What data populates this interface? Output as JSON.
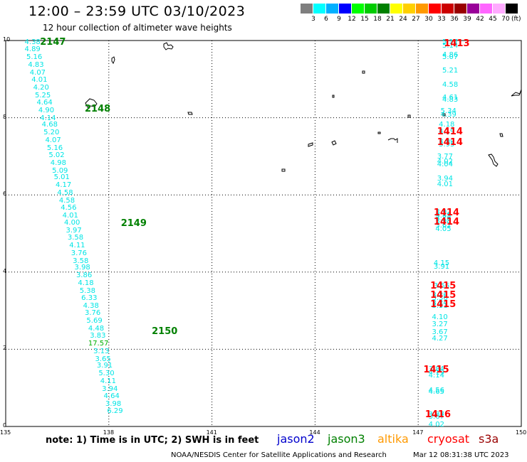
{
  "header": {
    "title": "12:00 – 23:59 UTC 03/10/2023",
    "subtitle": "12 hour collection of altimeter wave heights"
  },
  "color_scale": {
    "colors": [
      "#7f7f7f",
      "#00ffff",
      "#00b0ff",
      "#0000ff",
      "#00ff00",
      "#00cc00",
      "#008000",
      "#ffff00",
      "#ffd000",
      "#ff9900",
      "#ff0000",
      "#cc0000",
      "#990000",
      "#990099",
      "#ff66ff",
      "#ffaaff",
      "#000000"
    ],
    "labels": [
      "3",
      "6",
      "9",
      "12",
      "15",
      "18",
      "21",
      "24",
      "27",
      "30",
      "33",
      "36",
      "39",
      "42",
      "45",
      "70"
    ],
    "unit": "(ft)"
  },
  "axes": {
    "x_ticks": [
      "135",
      "138",
      "141",
      "144",
      "147",
      "150"
    ],
    "y_ticks": [
      "10",
      "8",
      "6",
      "4",
      "2",
      "0"
    ]
  },
  "map": {
    "x_range": [
      135,
      150
    ],
    "y_range": [
      0,
      10
    ],
    "grid": true
  },
  "tracks": [
    {
      "label": "2147",
      "color": "#008000",
      "lon": 136.0,
      "lat": 9.95
    },
    {
      "label": "2148",
      "color": "#008000",
      "lon": 137.3,
      "lat": 8.22
    },
    {
      "label": "2149",
      "color": "#008000",
      "lon": 138.35,
      "lat": 5.25
    },
    {
      "label": "2150",
      "color": "#008000",
      "lon": 139.25,
      "lat": 2.45
    },
    {
      "label": "1413",
      "color": "#ff0000",
      "lon": 147.75,
      "lat": 9.9
    },
    {
      "label": "1414",
      "color": "#ff0000",
      "lon": 147.55,
      "lat": 7.62
    },
    {
      "label": "1414",
      "color": "#ff0000",
      "lon": 147.55,
      "lat": 7.35
    },
    {
      "label": "1414",
      "color": "#ff0000",
      "lon": 147.45,
      "lat": 5.52
    },
    {
      "label": "1414",
      "color": "#ff0000",
      "lon": 147.45,
      "lat": 5.28
    },
    {
      "label": "1415",
      "color": "#ff0000",
      "lon": 147.35,
      "lat": 3.62
    },
    {
      "label": "1415",
      "color": "#ff0000",
      "lon": 147.35,
      "lat": 3.38
    },
    {
      "label": "1415",
      "color": "#ff0000",
      "lon": 147.35,
      "lat": 3.15
    },
    {
      "label": "1415",
      "color": "#ff0000",
      "lon": 147.15,
      "lat": 1.45
    },
    {
      "label": "1416",
      "color": "#ff0000",
      "lon": 147.2,
      "lat": 0.3
    }
  ],
  "observations": [
    {
      "v": "4.38",
      "lon": 135.55,
      "lat": 9.95,
      "c": "#00e5e5"
    },
    {
      "v": "4.89",
      "lon": 135.55,
      "lat": 9.76,
      "c": "#00e5e5"
    },
    {
      "v": "5.16",
      "lon": 135.6,
      "lat": 9.56,
      "c": "#00e5e5"
    },
    {
      "v": "4.83",
      "lon": 135.65,
      "lat": 9.36,
      "c": "#00e5e5"
    },
    {
      "v": "4.07",
      "lon": 135.7,
      "lat": 9.16,
      "c": "#00e5e5"
    },
    {
      "v": "4.01",
      "lon": 135.75,
      "lat": 8.96,
      "c": "#00e5e5"
    },
    {
      "v": "4.20",
      "lon": 135.8,
      "lat": 8.76,
      "c": "#00e5e5"
    },
    {
      "v": "5.25",
      "lon": 135.85,
      "lat": 8.56,
      "c": "#00e5e5"
    },
    {
      "v": "4.64",
      "lon": 135.9,
      "lat": 8.38,
      "c": "#00e5e5"
    },
    {
      "v": "4.90",
      "lon": 135.95,
      "lat": 8.18,
      "c": "#00e5e5"
    },
    {
      "v": "4.14",
      "lon": 136.0,
      "lat": 7.98,
      "c": "#00e5e5"
    },
    {
      "v": "4.68",
      "lon": 136.05,
      "lat": 7.8,
      "c": "#00e5e5"
    },
    {
      "v": "5.20",
      "lon": 136.1,
      "lat": 7.6,
      "c": "#00e5e5"
    },
    {
      "v": "4.07",
      "lon": 136.15,
      "lat": 7.4,
      "c": "#00e5e5"
    },
    {
      "v": "5.16",
      "lon": 136.2,
      "lat": 7.2,
      "c": "#00e5e5"
    },
    {
      "v": "5.02",
      "lon": 136.25,
      "lat": 7.02,
      "c": "#00e5e5"
    },
    {
      "v": "4.98",
      "lon": 136.3,
      "lat": 6.82,
      "c": "#00e5e5"
    },
    {
      "v": "5.09",
      "lon": 136.35,
      "lat": 6.62,
      "c": "#00e5e5"
    },
    {
      "v": "5.01",
      "lon": 136.4,
      "lat": 6.44,
      "c": "#00e5e5"
    },
    {
      "v": "4.17",
      "lon": 136.45,
      "lat": 6.24,
      "c": "#00e5e5"
    },
    {
      "v": "4.58",
      "lon": 136.5,
      "lat": 6.04,
      "c": "#00e5e5"
    },
    {
      "v": "4.58",
      "lon": 136.55,
      "lat": 5.84,
      "c": "#00e5e5"
    },
    {
      "v": "4.56",
      "lon": 136.6,
      "lat": 5.66,
      "c": "#00e5e5"
    },
    {
      "v": "4.01",
      "lon": 136.65,
      "lat": 5.46,
      "c": "#00e5e5"
    },
    {
      "v": "4.00",
      "lon": 136.7,
      "lat": 5.26,
      "c": "#00e5e5"
    },
    {
      "v": "3.97",
      "lon": 136.75,
      "lat": 5.06,
      "c": "#00e5e5"
    },
    {
      "v": "3.58",
      "lon": 136.8,
      "lat": 4.88,
      "c": "#00e5e5"
    },
    {
      "v": "4.11",
      "lon": 136.85,
      "lat": 4.68,
      "c": "#00e5e5"
    },
    {
      "v": "3.76",
      "lon": 136.9,
      "lat": 4.48,
      "c": "#00e5e5"
    },
    {
      "v": "3.58",
      "lon": 136.95,
      "lat": 4.28,
      "c": "#00e5e5"
    },
    {
      "v": "3.98",
      "lon": 137.0,
      "lat": 4.1,
      "c": "#00e5e5"
    },
    {
      "v": "3.86",
      "lon": 137.05,
      "lat": 3.9,
      "c": "#00e5e5"
    },
    {
      "v": "4.18",
      "lon": 137.1,
      "lat": 3.7,
      "c": "#00e5e5"
    },
    {
      "v": "5.38",
      "lon": 137.15,
      "lat": 3.5,
      "c": "#00e5e5"
    },
    {
      "v": "6.33",
      "lon": 137.2,
      "lat": 3.32,
      "c": "#00e5e5"
    },
    {
      "v": "4.38",
      "lon": 137.25,
      "lat": 3.12,
      "c": "#00e5e5"
    },
    {
      "v": "3.76",
      "lon": 137.3,
      "lat": 2.92,
      "c": "#00e5e5"
    },
    {
      "v": "5.69",
      "lon": 137.35,
      "lat": 2.72,
      "c": "#00e5e5"
    },
    {
      "v": "4.48",
      "lon": 137.4,
      "lat": 2.52,
      "c": "#00e5e5"
    },
    {
      "v": "3.83",
      "lon": 137.45,
      "lat": 2.34,
      "c": "#00e5e5"
    },
    {
      "v": "17.57",
      "lon": 137.4,
      "lat": 2.14,
      "c": "#00b000"
    },
    {
      "v": "3.13",
      "lon": 137.55,
      "lat": 1.94,
      "c": "#00e5e5"
    },
    {
      "v": "3.65",
      "lon": 137.6,
      "lat": 1.74,
      "c": "#00e5e5"
    },
    {
      "v": "3.91",
      "lon": 137.65,
      "lat": 1.56,
      "c": "#00e5e5"
    },
    {
      "v": "5.30",
      "lon": 137.7,
      "lat": 1.36,
      "c": "#00e5e5"
    },
    {
      "v": "4.11",
      "lon": 137.75,
      "lat": 1.16,
      "c": "#00e5e5"
    },
    {
      "v": "3.94",
      "lon": 137.8,
      "lat": 0.96,
      "c": "#00e5e5"
    },
    {
      "v": "4.64",
      "lon": 137.85,
      "lat": 0.78,
      "c": "#00e5e5"
    },
    {
      "v": "3.98",
      "lon": 137.9,
      "lat": 0.58,
      "c": "#00e5e5"
    },
    {
      "v": "6.29",
      "lon": 137.95,
      "lat": 0.38,
      "c": "#00e5e5"
    },
    {
      "v": "5.17",
      "lon": 147.7,
      "lat": 9.95,
      "c": "#00e5e5"
    },
    {
      "v": "5.14",
      "lon": 147.7,
      "lat": 9.86,
      "c": "#00e5e5"
    },
    {
      "v": "4.86",
      "lon": 147.7,
      "lat": 9.62,
      "c": "#00e5e5"
    },
    {
      "v": "5.07",
      "lon": 147.7,
      "lat": 9.55,
      "c": "#00e5e5"
    },
    {
      "v": "5.21",
      "lon": 147.7,
      "lat": 9.2,
      "c": "#00e5e5"
    },
    {
      "v": "4.58",
      "lon": 147.7,
      "lat": 8.84,
      "c": "#00e5e5"
    },
    {
      "v": "4.61",
      "lon": 147.7,
      "lat": 8.5,
      "c": "#00e5e5"
    },
    {
      "v": "4.83",
      "lon": 147.7,
      "lat": 8.46,
      "c": "#00e5e5"
    },
    {
      "v": "5.34",
      "lon": 147.65,
      "lat": 8.16,
      "c": "#00e5e5"
    },
    {
      "v": "4.39",
      "lon": 147.65,
      "lat": 8.06,
      "c": "#00e5e5"
    },
    {
      "v": "4.18",
      "lon": 147.6,
      "lat": 7.8,
      "c": "#00e5e5"
    },
    {
      "v": "4.19",
      "lon": 147.6,
      "lat": 7.62,
      "c": "#00e5e5"
    },
    {
      "v": "3.99",
      "lon": 147.6,
      "lat": 7.36,
      "c": "#00e5e5"
    },
    {
      "v": "3.95",
      "lon": 147.6,
      "lat": 7.3,
      "c": "#00e5e5"
    },
    {
      "v": "3.77",
      "lon": 147.55,
      "lat": 6.98,
      "c": "#00e5e5"
    },
    {
      "v": "4.02",
      "lon": 147.55,
      "lat": 6.86,
      "c": "#00e5e5"
    },
    {
      "v": "4.04",
      "lon": 147.55,
      "lat": 6.78,
      "c": "#00e5e5"
    },
    {
      "v": "3.94",
      "lon": 147.55,
      "lat": 6.4,
      "c": "#00e5e5"
    },
    {
      "v": "4.01",
      "lon": 147.55,
      "lat": 6.26,
      "c": "#00e5e5"
    },
    {
      "v": "3.92",
      "lon": 147.5,
      "lat": 5.54,
      "c": "#00e5e5"
    },
    {
      "v": "3.85",
      "lon": 147.5,
      "lat": 5.46,
      "c": "#00e5e5"
    },
    {
      "v": "3.76",
      "lon": 147.5,
      "lat": 5.38,
      "c": "#00e5e5"
    },
    {
      "v": "3.98",
      "lon": 147.5,
      "lat": 5.3,
      "c": "#00e5e5"
    },
    {
      "v": "3.62",
      "lon": 147.5,
      "lat": 5.2,
      "c": "#00e5e5"
    },
    {
      "v": "4.05",
      "lon": 147.5,
      "lat": 5.1,
      "c": "#00e5e5"
    },
    {
      "v": "4.15",
      "lon": 147.45,
      "lat": 4.22,
      "c": "#00e5e5"
    },
    {
      "v": "3.91",
      "lon": 147.45,
      "lat": 4.12,
      "c": "#00e5e5"
    },
    {
      "v": "3.56",
      "lon": 147.45,
      "lat": 3.62,
      "c": "#00e5e5"
    },
    {
      "v": "3.26",
      "lon": 147.4,
      "lat": 3.38,
      "c": "#00e5e5"
    },
    {
      "v": "3.36",
      "lon": 147.4,
      "lat": 3.32,
      "c": "#00e5e5"
    },
    {
      "v": "3.24",
      "lon": 147.4,
      "lat": 3.18,
      "c": "#00e5e5"
    },
    {
      "v": "3.31",
      "lon": 147.4,
      "lat": 3.12,
      "c": "#00e5e5"
    },
    {
      "v": "4.10",
      "lon": 147.4,
      "lat": 2.82,
      "c": "#00e5e5"
    },
    {
      "v": "3.27",
      "lon": 147.4,
      "lat": 2.64,
      "c": "#00e5e5"
    },
    {
      "v": "3.67",
      "lon": 147.4,
      "lat": 2.44,
      "c": "#00e5e5"
    },
    {
      "v": "4.27",
      "lon": 147.4,
      "lat": 2.26,
      "c": "#00e5e5"
    },
    {
      "v": "3.84",
      "lon": 147.3,
      "lat": 1.48,
      "c": "#00e5e5"
    },
    {
      "v": "4.19",
      "lon": 147.3,
      "lat": 1.38,
      "c": "#00e5e5"
    },
    {
      "v": "4.14",
      "lon": 147.3,
      "lat": 1.3,
      "c": "#00e5e5"
    },
    {
      "v": "4.56",
      "lon": 147.3,
      "lat": 0.92,
      "c": "#00e5e5"
    },
    {
      "v": "4.65",
      "lon": 147.3,
      "lat": 0.88,
      "c": "#00e5e5"
    },
    {
      "v": "3.87",
      "lon": 147.3,
      "lat": 0.3,
      "c": "#00e5e5"
    },
    {
      "v": "3.67",
      "lon": 147.3,
      "lat": 0.24,
      "c": "#00e5e5"
    },
    {
      "v": "4.02",
      "lon": 147.3,
      "lat": 0.04,
      "c": "#00e5e5"
    }
  ],
  "footer": {
    "note": "note:  1) Time is in UTC;  2) SWH is in feet",
    "satellites": [
      {
        "name": "jason2",
        "color": "#0000cc"
      },
      {
        "name": "jason3",
        "color": "#008000"
      },
      {
        "name": "altika",
        "color": "#ff9900"
      },
      {
        "name": "cryosat",
        "color": "#ff0000"
      },
      {
        "name": "s3a",
        "color": "#990000"
      }
    ],
    "credit": "NOAA/NESDIS Center for Satellite Applications and Research",
    "timestamp": "Mar 12 08:31:38 UTC 2023"
  }
}
